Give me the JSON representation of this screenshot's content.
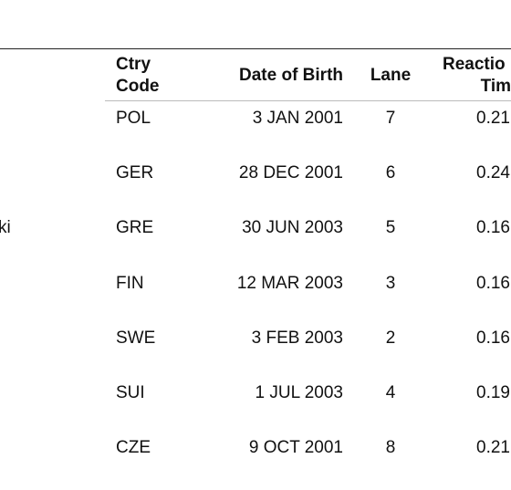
{
  "table": {
    "header": {
      "ctry": [
        "Ctry",
        "Code"
      ],
      "dob": "Date of Birth",
      "lane": "Lane",
      "reaction": [
        "Reactio",
        "Tim"
      ]
    },
    "rows": [
      {
        "ctry": "POL",
        "dob": "3 JAN 2001",
        "lane": 7,
        "reaction": 0.21
      },
      {
        "ctry": "GER",
        "dob": "28 DEC 2001",
        "lane": 6,
        "reaction": 0.24
      },
      {
        "name": "ki",
        "ctry": "GRE",
        "dob": "30 JUN 2003",
        "lane": 5,
        "reaction": 0.16
      },
      {
        "ctry": "FIN",
        "dob": "12 MAR 2003",
        "lane": 3,
        "reaction": 0.16
      },
      {
        "ctry": "SWE",
        "dob": "3 FEB 2003",
        "lane": 2,
        "reaction": 0.16
      },
      {
        "ctry": "SUI",
        "dob": "1 JUL 2003",
        "lane": 4,
        "reaction": 0.19
      },
      {
        "ctry": "CZE",
        "dob": "9 OCT 2001",
        "lane": 8,
        "reaction": 0.21
      }
    ]
  }
}
